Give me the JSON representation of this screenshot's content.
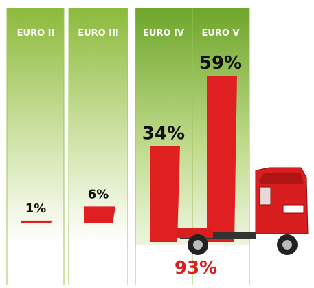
{
  "chart_data": {
    "type": "bar",
    "categories": [
      "EURO II",
      "EURO III",
      "EURO IV",
      "EURO V"
    ],
    "values": [
      1,
      6,
      34,
      59
    ],
    "value_labels": [
      "1%",
      "6%",
      "34%",
      "59%"
    ],
    "color": "#e02020",
    "total_label": "93%"
  }
}
